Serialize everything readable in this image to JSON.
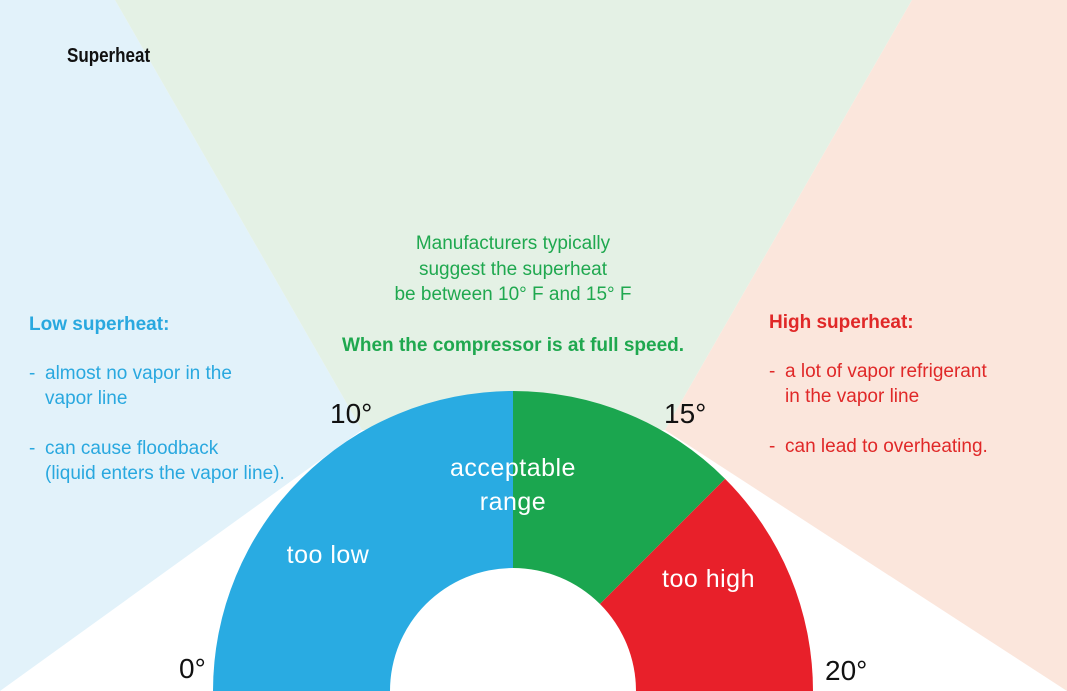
{
  "title": "Superheat",
  "colors": {
    "low": "#29abe2",
    "acceptable": "#1ba64f",
    "high": "#e8202a",
    "low_bg": "#e2f2fa",
    "acceptable_bg": "#e4f1e5",
    "high_bg": "#fbe6dc"
  },
  "gauge": {
    "min": 0,
    "max": 20,
    "ticks": [
      {
        "value": 0,
        "label": "0°"
      },
      {
        "value": 10,
        "label": "10°"
      },
      {
        "value": 15,
        "label": "15°"
      },
      {
        "value": 20,
        "label": "20°"
      }
    ],
    "segments": [
      {
        "from": 0,
        "to": 10,
        "label_lines": [
          "too low"
        ],
        "color": "#29abe2"
      },
      {
        "from": 10,
        "to": 15,
        "label_lines": [
          "acceptable",
          "range"
        ],
        "color": "#1ba64f"
      },
      {
        "from": 15,
        "to": 20,
        "label_lines": [
          "too high"
        ],
        "color": "#e8202a"
      }
    ]
  },
  "acceptable_note": {
    "lines": [
      "Manufacturers typically",
      "suggest the superheat",
      "be between 10° F and 15° F"
    ],
    "bold_line": "When the compressor is at full speed."
  },
  "low_note": {
    "heading": "Low superheat:",
    "items": [
      {
        "lines": [
          "almost no vapor in the",
          "vapor line"
        ]
      },
      {
        "lines": [
          "can cause floodback",
          "(liquid enters the vapor line)."
        ]
      }
    ]
  },
  "high_note": {
    "heading": "High superheat:",
    "items": [
      {
        "lines": [
          "a lot of vapor refrigerant",
          "in the vapor line"
        ]
      },
      {
        "lines": [
          "can lead to overheating."
        ]
      }
    ]
  }
}
